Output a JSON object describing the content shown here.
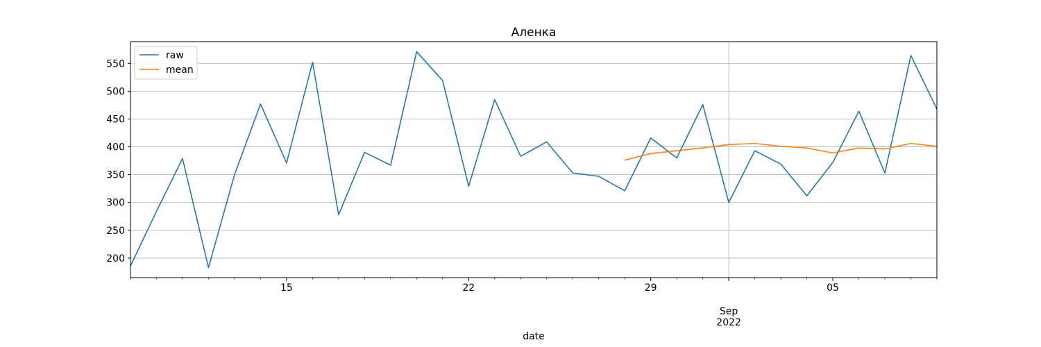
{
  "chart_data": {
    "type": "line",
    "title": "Аленка",
    "xlabel": "date",
    "ylabel": "",
    "xlim": [
      "2022-08-09",
      "2022-09-09"
    ],
    "ylim": [
      165,
      589
    ],
    "x_dates": [
      "2022-08-09",
      "2022-08-10",
      "2022-08-11",
      "2022-08-12",
      "2022-08-13",
      "2022-08-14",
      "2022-08-15",
      "2022-08-16",
      "2022-08-17",
      "2022-08-18",
      "2022-08-19",
      "2022-08-20",
      "2022-08-21",
      "2022-08-22",
      "2022-08-23",
      "2022-08-24",
      "2022-08-25",
      "2022-08-26",
      "2022-08-27",
      "2022-08-28",
      "2022-08-29",
      "2022-08-30",
      "2022-08-31",
      "2022-09-01",
      "2022-09-02",
      "2022-09-03",
      "2022-09-04",
      "2022-09-05",
      "2022-09-06",
      "2022-09-07",
      "2022-09-08",
      "2022-09-09"
    ],
    "series": [
      {
        "name": "raw",
        "color": "#1f77b4",
        "values": [
          186,
          284,
          379,
          183,
          350,
          477,
          371,
          552,
          278,
          390,
          367,
          571,
          519,
          329,
          485,
          383,
          409,
          353,
          347,
          321,
          416,
          380,
          476,
          300,
          393,
          369,
          312,
          372,
          464,
          353,
          564,
          468
        ]
      },
      {
        "name": "mean",
        "color": "#ff7f0e",
        "values": [
          null,
          null,
          null,
          null,
          null,
          null,
          null,
          null,
          null,
          null,
          null,
          null,
          null,
          null,
          null,
          null,
          null,
          null,
          null,
          376,
          388,
          393,
          398,
          404,
          406,
          401,
          398,
          389,
          398,
          396,
          406,
          401
        ]
      }
    ],
    "yticks": [
      200,
      250,
      300,
      350,
      400,
      450,
      500,
      550
    ],
    "xticks_major": [
      {
        "date": "2022-08-15",
        "label": "15"
      },
      {
        "date": "2022-08-22",
        "label": "22"
      },
      {
        "date": "2022-08-29",
        "label": "29"
      },
      {
        "date": "2022-09-01",
        "label": "Sep\n2022"
      },
      {
        "date": "2022-09-05",
        "label": "05"
      }
    ],
    "xgrid": [
      "2022-09-01"
    ],
    "grid_y": true,
    "legend": "upper-left"
  }
}
